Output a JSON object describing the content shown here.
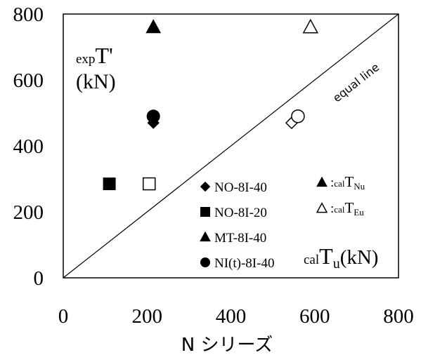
{
  "chart_data": {
    "type": "scatter",
    "xlabel": "N シリーズ",
    "ylabel": {
      "sub": "exp",
      "main": "T'",
      "unit": "(kN)"
    },
    "inner_xlabel": {
      "sub": "cal",
      "main": "T",
      "sub2": "u",
      "unit": "(kN)"
    },
    "xlim": [
      0,
      800
    ],
    "ylim": [
      0,
      800
    ],
    "xticks": [
      "0",
      "200",
      "400",
      "600",
      "800"
    ],
    "yticks": [
      "0",
      "200",
      "400",
      "600",
      "800"
    ],
    "grid": false,
    "equal_line_label": "equal line",
    "series": [
      {
        "name": "NO-8I-40",
        "marker": "diamond",
        "points": [
          {
            "x": 215,
            "y": 470,
            "filled": true
          },
          {
            "x": 545,
            "y": 470,
            "filled": false
          }
        ]
      },
      {
        "name": "NO-8I-20",
        "marker": "square",
        "points": [
          {
            "x": 110,
            "y": 285,
            "filled": true
          },
          {
            "x": 205,
            "y": 285,
            "filled": false
          }
        ]
      },
      {
        "name": "MT-8I-40",
        "marker": "triangle",
        "points": [
          {
            "x": 215,
            "y": 760,
            "filled": true
          },
          {
            "x": 590,
            "y": 760,
            "filled": false
          }
        ]
      },
      {
        "name": "NI(t)-8I-40",
        "marker": "circle",
        "points": [
          {
            "x": 215,
            "y": 490,
            "filled": true
          },
          {
            "x": 560,
            "y": 490,
            "filled": false
          }
        ]
      }
    ],
    "marker_legend": [
      {
        "filled": true,
        "text": ":",
        "sub": "cal",
        "main": "T",
        "sub2": "Nu"
      },
      {
        "filled": false,
        "text": ":",
        "sub": "cal",
        "main": "T",
        "sub2": "Eu"
      }
    ]
  }
}
